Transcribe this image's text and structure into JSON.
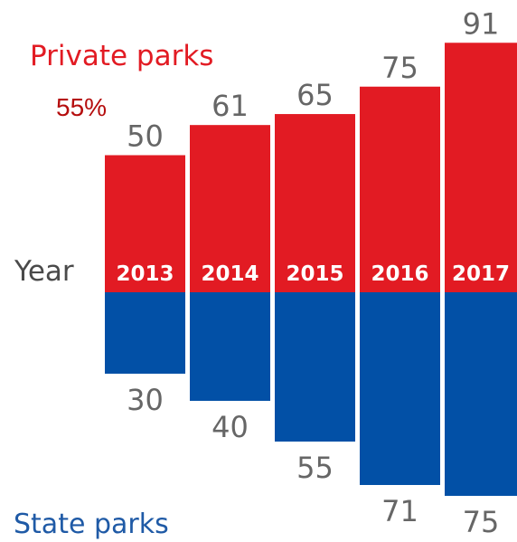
{
  "labels": {
    "private_series": "Private parks",
    "state_series": "State parks",
    "percentage_note": "55%",
    "category_axis": "Year"
  },
  "colors": {
    "private": "#e21b23",
    "state": "#0250a6",
    "value_text": "#666666",
    "year_text": "#ffffff"
  },
  "chart_data": {
    "type": "bar",
    "categories": [
      "2013",
      "2014",
      "2015",
      "2016",
      "2017"
    ],
    "series": [
      {
        "name": "Private parks",
        "values": [
          50,
          61,
          65,
          75,
          91
        ]
      },
      {
        "name": "State parks",
        "values": [
          30,
          40,
          55,
          71,
          75
        ]
      }
    ],
    "layout": "diverging (private above, state below year band)",
    "xlabel": "Year"
  }
}
